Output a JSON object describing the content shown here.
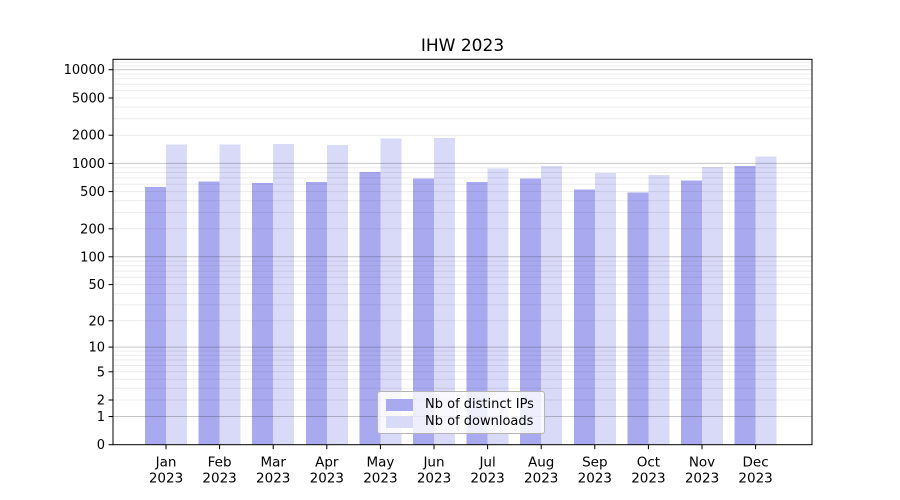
{
  "chart_data": {
    "type": "bar",
    "title": "IHW 2023",
    "categories": [
      "Jan",
      "Feb",
      "Mar",
      "Apr",
      "May",
      "Jun",
      "Jul",
      "Aug",
      "Sep",
      "Oct",
      "Nov",
      "Dec"
    ],
    "x_tick_second_line": "2023",
    "series": [
      {
        "name": "Nb of distinct IPs",
        "color": "#a9a9f0",
        "values": [
          560,
          640,
          620,
          630,
          810,
          690,
          630,
          690,
          530,
          490,
          660,
          940
        ]
      },
      {
        "name": "Nb of downloads",
        "color": "#d9d9f8",
        "values": [
          1600,
          1600,
          1610,
          1570,
          1840,
          1880,
          880,
          940,
          795,
          755,
          920,
          1190
        ]
      }
    ],
    "yscale": "symlog (log1p)",
    "yticks": [
      0,
      1,
      2,
      5,
      10,
      20,
      50,
      100,
      200,
      500,
      1000,
      2000,
      5000,
      10000
    ],
    "ylim": [
      0,
      13000
    ],
    "xlabel": "",
    "ylabel": "",
    "grid": "horizontal major and minor",
    "legend_position": "lower center"
  },
  "colors": {
    "bar_ips": "#a9a9f0",
    "bar_downloads": "#d9d9f8",
    "grid_major": "rgba(0,0,0,0.22)",
    "grid_minor": "rgba(0,0,0,0.075)",
    "axis": "#000000",
    "background": "#ffffff"
  }
}
